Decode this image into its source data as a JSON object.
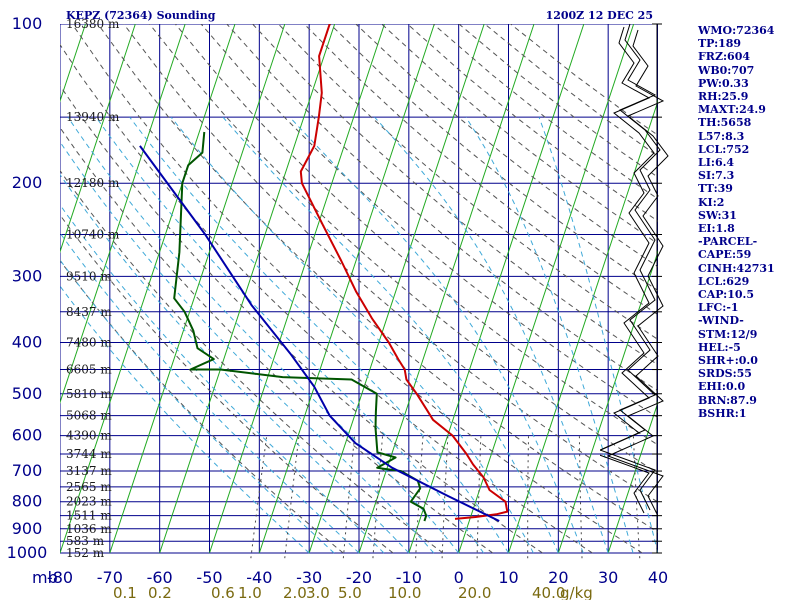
{
  "header": {
    "station": "KEPZ (72364) Sounding",
    "time": "1200Z 12 DEC 25"
  },
  "indices": [
    "WMO:72364",
    "TP:189",
    "FRZ:604",
    "WB0:707",
    "PW:0.33",
    "RH:25.9",
    "MAXT:24.9",
    "TH:5658",
    "L57:8.3",
    "LCL:752",
    "LI:6.4",
    "SI:7.3",
    "TT:39",
    "KI:2",
    "SW:31",
    "EI:1.8",
    "-PARCEL-",
    "CAPE:59",
    "CINH:42731",
    "LCL:629",
    "CAP:10.5",
    "LFC:-1",
    "-WIND-",
    "STM:12/9",
    "HEL:-5",
    "SHR+:0.0",
    "SRDS:55",
    "EHI:0.0",
    "BRN:87.9",
    "BSHR:1"
  ],
  "chart_data": {
    "type": "line",
    "title": "KEPZ (72364) Sounding",
    "subtitle": "1200Z 12 DEC 25",
    "xlabel": "",
    "ylabel": "mb",
    "x_axis": {
      "ticks": [
        -80,
        -70,
        -60,
        -50,
        -40,
        -30,
        -20,
        -10,
        0,
        10,
        20,
        30,
        40
      ],
      "range": [
        -80,
        40
      ]
    },
    "y_axis": {
      "ticks": [
        100,
        200,
        300,
        400,
        500,
        600,
        700,
        800,
        900,
        1000
      ],
      "range": [
        1000,
        100
      ],
      "scale": "log",
      "label": "mb"
    },
    "height_labels": [
      {
        "p": 100,
        "label": "16380 m"
      },
      {
        "p": 150,
        "label": "13940 m"
      },
      {
        "p": 200,
        "label": "12180 m"
      },
      {
        "p": 250,
        "label": "10740 m"
      },
      {
        "p": 300,
        "label": "9510 m"
      },
      {
        "p": 350,
        "label": "8437 m"
      },
      {
        "p": 400,
        "label": "7480 m"
      },
      {
        "p": 450,
        "label": "6605 m"
      },
      {
        "p": 500,
        "label": "5810 m"
      },
      {
        "p": 550,
        "label": "5068 m"
      },
      {
        "p": 600,
        "label": "4390 m"
      },
      {
        "p": 650,
        "label": "3744 m"
      },
      {
        "p": 700,
        "label": "3137 m"
      },
      {
        "p": 750,
        "label": "2565 m"
      },
      {
        "p": 800,
        "label": "2023 m"
      },
      {
        "p": 850,
        "label": "1511 m"
      },
      {
        "p": 900,
        "label": "1036 m"
      },
      {
        "p": 950,
        "label": "583 m"
      },
      {
        "p": 1000,
        "label": "152 m"
      }
    ],
    "mixing_ratio_labels": [
      "0.1",
      "0.2",
      "0.6",
      "1.0",
      "2.0",
      "3.0",
      "5.0",
      "10.0",
      "20.0",
      "40.0",
      "g/kg"
    ],
    "mixing_ratio_values": [
      0.1,
      0.2,
      0.6,
      1.0,
      2.0,
      3.0,
      5.0,
      10.0,
      20.0,
      40.0
    ],
    "series": [
      {
        "role": "temperature",
        "color": "#cc0000",
        "points": [
          [
            -61,
            100
          ],
          [
            -61,
            115
          ],
          [
            -58,
            135
          ],
          [
            -57,
            150
          ],
          [
            -56,
            170
          ],
          [
            -57,
            190
          ],
          [
            -56,
            200
          ],
          [
            -49,
            240
          ],
          [
            -43,
            280
          ],
          [
            -38,
            320
          ],
          [
            -33,
            360
          ],
          [
            -28,
            400
          ],
          [
            -25,
            430
          ],
          [
            -23,
            450
          ],
          [
            -22,
            470
          ],
          [
            -19,
            500
          ],
          [
            -16,
            535
          ],
          [
            -14,
            560
          ],
          [
            -9,
            600
          ],
          [
            -5,
            650
          ],
          [
            -3,
            680
          ],
          [
            0,
            720
          ],
          [
            2,
            760
          ],
          [
            6,
            800
          ],
          [
            7,
            835
          ],
          [
            5,
            845
          ],
          [
            1,
            855
          ],
          [
            -3,
            862
          ]
        ]
      },
      {
        "role": "dewpoint",
        "color": "#005500",
        "points": [
          [
            -79,
            160
          ],
          [
            -78,
            175
          ],
          [
            -80,
            185
          ],
          [
            -80,
            200
          ],
          [
            -76,
            270
          ],
          [
            -74,
            330
          ],
          [
            -71,
            350
          ],
          [
            -68,
            380
          ],
          [
            -66,
            410
          ],
          [
            -62,
            430
          ],
          [
            -66,
            450
          ],
          [
            -60,
            450
          ],
          [
            -47,
            465
          ],
          [
            -33,
            470
          ],
          [
            -27,
            500
          ],
          [
            -26,
            540
          ],
          [
            -25,
            580
          ],
          [
            -23,
            645
          ],
          [
            -19,
            660
          ],
          [
            -22,
            690
          ],
          [
            -17,
            700
          ],
          [
            -13,
            730
          ],
          [
            -12,
            755
          ],
          [
            -13,
            800
          ],
          [
            -10,
            825
          ],
          [
            -9,
            850
          ],
          [
            -9,
            870
          ]
        ]
      },
      {
        "role": "parcel",
        "color": "#0000aa",
        "points": [
          [
            -91,
            170
          ],
          [
            -72,
            250
          ],
          [
            -58,
            340
          ],
          [
            -47,
            420
          ],
          [
            -40,
            485
          ],
          [
            -35,
            550
          ],
          [
            -28,
            620
          ],
          [
            -19,
            690
          ],
          [
            -6,
            780
          ],
          [
            6,
            870
          ]
        ]
      }
    ],
    "grid": true,
    "legend": "none"
  }
}
